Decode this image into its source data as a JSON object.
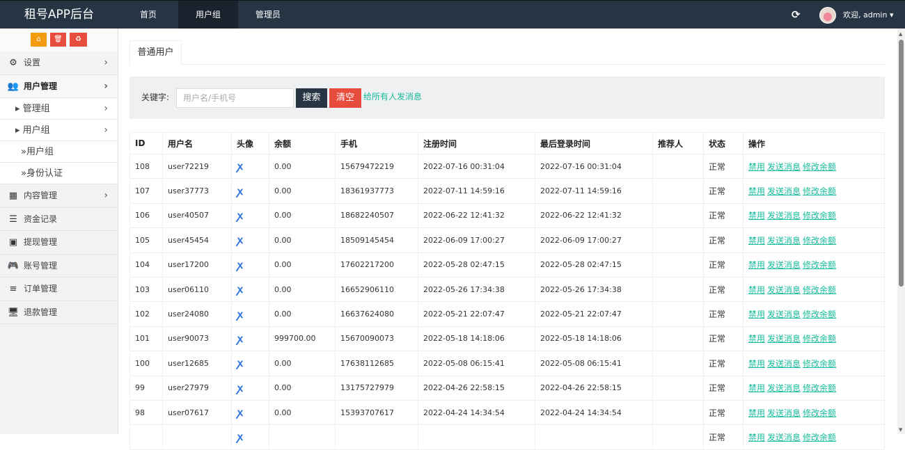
{
  "header": {
    "brand": "租号APP后台",
    "nav": [
      "首页",
      "用户组",
      "管理员"
    ],
    "active_nav": 1,
    "welcome": "欢迎, admin ▾"
  },
  "sidebar": {
    "quick": [
      "⌂",
      "🗑",
      "♻"
    ],
    "items": [
      {
        "label": "设置",
        "icon": "gears-icon",
        "glyph": "⚙",
        "chev": "›"
      },
      {
        "label": "用户管理",
        "icon": "users-icon",
        "glyph": "👥",
        "chev": "›"
      },
      {
        "label": "▸ 管理组",
        "chev": "›"
      },
      {
        "label": "▸ 用户组",
        "chev": "›"
      },
      {
        "label": "»用户组"
      },
      {
        "label": "»身份认证"
      },
      {
        "label": "内容管理",
        "icon": "grid-icon",
        "glyph": "▦",
        "chev": "›"
      },
      {
        "label": "资金记录",
        "icon": "list-icon",
        "glyph": "☰"
      },
      {
        "label": "提现管理",
        "icon": "money-icon",
        "glyph": "▣"
      },
      {
        "label": "账号管理",
        "icon": "gamepad-icon",
        "glyph": "🎮"
      },
      {
        "label": "订单管理",
        "icon": "bars-icon",
        "glyph": "≡"
      },
      {
        "label": "退款管理",
        "icon": "desktop-icon",
        "glyph": "🖥"
      }
    ]
  },
  "tab": "普通用户",
  "search": {
    "label": "关键字:",
    "placeholder": "用户名/手机号",
    "search": "搜索",
    "clear": "清空",
    "message_all": "给所有人发消息"
  },
  "table": {
    "columns": [
      "ID",
      "用户名",
      "头像",
      "余额",
      "手机",
      "注册时间",
      "最后登录时间",
      "推荐人",
      "状态",
      "操作"
    ],
    "actions": [
      "禁用",
      "发送消息",
      "修改余额"
    ],
    "rows": [
      [
        "108",
        "user72219",
        "0.00",
        "15679472219",
        "2022-07-16 00:31:04",
        "2022-07-16 00:31:04",
        "",
        "正常"
      ],
      [
        "107",
        "user37773",
        "0.00",
        "18361937773",
        "2022-07-11 14:59:16",
        "2022-07-11 14:59:16",
        "",
        "正常"
      ],
      [
        "106",
        "user40507",
        "0.00",
        "18682240507",
        "2022-06-22 12:41:32",
        "2022-06-22 12:41:32",
        "",
        "正常"
      ],
      [
        "105",
        "user45454",
        "0.00",
        "18509145454",
        "2022-06-09 17:00:27",
        "2022-06-09 17:00:27",
        "",
        "正常"
      ],
      [
        "104",
        "user17200",
        "0.00",
        "17602217200",
        "2022-05-28 02:47:15",
        "2022-05-28 02:47:15",
        "",
        "正常"
      ],
      [
        "103",
        "user06110",
        "0.00",
        "16652906110",
        "2022-05-26 17:34:38",
        "2022-05-26 17:34:38",
        "",
        "正常"
      ],
      [
        "102",
        "user24080",
        "0.00",
        "16637624080",
        "2022-05-21 22:07:47",
        "2022-05-21 22:07:47",
        "",
        "正常"
      ],
      [
        "101",
        "user90073",
        "999700.00",
        "15670090073",
        "2022-05-18 14:18:06",
        "2022-05-18 14:18:06",
        "",
        "正常"
      ],
      [
        "100",
        "user12685",
        "0.00",
        "17638112685",
        "2022-05-08 06:15:41",
        "2022-05-08 06:15:41",
        "",
        "正常"
      ],
      [
        "99",
        "user27979",
        "0.00",
        "13175727979",
        "2022-04-26 22:58:15",
        "2022-04-26 22:58:15",
        "",
        "正常"
      ],
      [
        "98",
        "user07617",
        "0.00",
        "15393707617",
        "2022-04-24 14:34:54",
        "2022-04-24 14:34:54",
        "",
        "正常"
      ],
      [
        "",
        "",
        "",
        "",
        "",
        "",
        "",
        "正常"
      ]
    ]
  },
  "colors": {
    "topbar": "#263444",
    "accent": "#18bc9c",
    "danger": "#e74c3c",
    "warning": "#f39c12"
  }
}
